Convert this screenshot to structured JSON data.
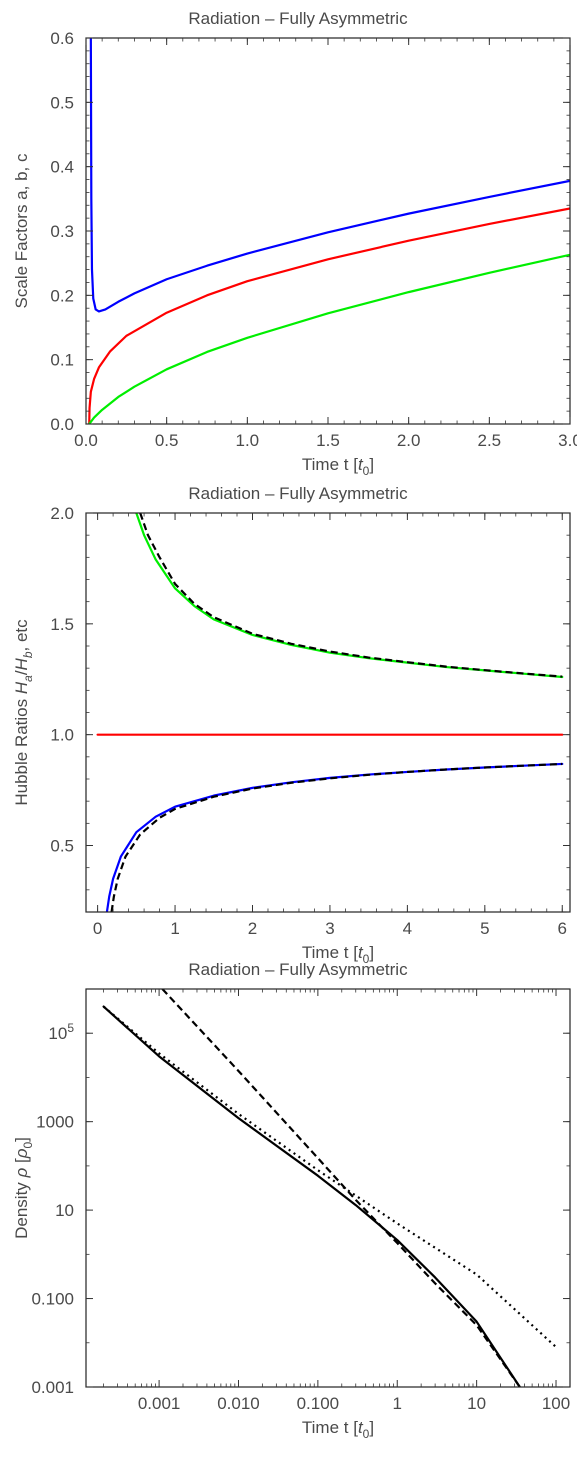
{
  "chart_data": [
    {
      "type": "line",
      "title": "Radiation  – Fully Asymmetric",
      "xlabel": "Time  t [t₀]",
      "ylabel": "Scale Factors   a, b, c",
      "xlim": [
        0,
        3
      ],
      "ylim": [
        0,
        0.6
      ],
      "x_ticks": [
        "0.0",
        "0.5",
        "1.0",
        "1.5",
        "2.0",
        "2.5",
        "3.0"
      ],
      "y_ticks": [
        "0.0",
        "0.1",
        "0.2",
        "0.3",
        "0.4",
        "0.5",
        "0.6"
      ],
      "series": [
        {
          "color": "#0000ff",
          "style": "solid",
          "points": [
            [
              0.03,
              0.6
            ],
            [
              0.033,
              0.35
            ],
            [
              0.037,
              0.24
            ],
            [
              0.045,
              0.195
            ],
            [
              0.06,
              0.178
            ],
            [
              0.08,
              0.175
            ],
            [
              0.12,
              0.178
            ],
            [
              0.2,
              0.19
            ],
            [
              0.3,
              0.203
            ],
            [
              0.5,
              0.225
            ],
            [
              0.75,
              0.246
            ],
            [
              1.0,
              0.265
            ],
            [
              1.5,
              0.298
            ],
            [
              2.0,
              0.327
            ],
            [
              2.5,
              0.353
            ],
            [
              3.0,
              0.378
            ]
          ]
        },
        {
          "color": "#ff0000",
          "style": "solid",
          "points": [
            [
              0.02,
              0.0
            ],
            [
              0.022,
              0.025
            ],
            [
              0.03,
              0.05
            ],
            [
              0.05,
              0.07
            ],
            [
              0.08,
              0.088
            ],
            [
              0.15,
              0.113
            ],
            [
              0.25,
              0.137
            ],
            [
              0.5,
              0.173
            ],
            [
              0.75,
              0.2
            ],
            [
              1.0,
              0.222
            ],
            [
              1.5,
              0.256
            ],
            [
              2.0,
              0.285
            ],
            [
              2.5,
              0.311
            ],
            [
              3.0,
              0.335
            ]
          ]
        },
        {
          "color": "#00ee00",
          "style": "solid",
          "points": [
            [
              0.02,
              0.0
            ],
            [
              0.05,
              0.01
            ],
            [
              0.1,
              0.022
            ],
            [
              0.2,
              0.042
            ],
            [
              0.3,
              0.058
            ],
            [
              0.5,
              0.085
            ],
            [
              0.75,
              0.112
            ],
            [
              1.0,
              0.134
            ],
            [
              1.5,
              0.172
            ],
            [
              2.0,
              0.205
            ],
            [
              2.5,
              0.235
            ],
            [
              3.0,
              0.263
            ]
          ]
        }
      ]
    },
    {
      "type": "line",
      "title": "Radiation – Fully Asymmetric",
      "xlabel": "Time  t [t₀]",
      "ylabel": "Hubble Ratios  Ha/Hb, etc",
      "xlim": [
        -0.15,
        6.1
      ],
      "ylim": [
        0.2,
        2.0
      ],
      "x_ticks": [
        "0",
        "1",
        "2",
        "3",
        "4",
        "5",
        "6"
      ],
      "y_ticks": [
        "0.5",
        "1.0",
        "1.5",
        "2.0"
      ],
      "series": [
        {
          "color": "#00ee00",
          "style": "solid",
          "points": [
            [
              0.5,
              2.0
            ],
            [
              0.6,
              1.9
            ],
            [
              0.75,
              1.79
            ],
            [
              1.0,
              1.66
            ],
            [
              1.25,
              1.58
            ],
            [
              1.5,
              1.52
            ],
            [
              2.0,
              1.45
            ],
            [
              2.5,
              1.405
            ],
            [
              3.0,
              1.37
            ],
            [
              3.5,
              1.345
            ],
            [
              4.0,
              1.325
            ],
            [
              4.5,
              1.305
            ],
            [
              5.0,
              1.29
            ],
            [
              5.5,
              1.275
            ],
            [
              6.0,
              1.26
            ]
          ]
        },
        {
          "color": "#000000",
          "style": "dashed",
          "points": [
            [
              0.55,
              2.0
            ],
            [
              0.65,
              1.9
            ],
            [
              0.8,
              1.8
            ],
            [
              1.0,
              1.68
            ],
            [
              1.25,
              1.59
            ],
            [
              1.5,
              1.53
            ],
            [
              2.0,
              1.455
            ],
            [
              2.5,
              1.41
            ],
            [
              3.0,
              1.375
            ],
            [
              3.5,
              1.348
            ],
            [
              4.0,
              1.327
            ],
            [
              4.5,
              1.307
            ],
            [
              5.0,
              1.291
            ],
            [
              5.5,
              1.276
            ],
            [
              6.0,
              1.262
            ]
          ]
        },
        {
          "color": "#ff0000",
          "style": "solid",
          "points": [
            [
              0.0,
              1.0
            ],
            [
              6.0,
              1.0
            ]
          ]
        },
        {
          "color": "#0000ff",
          "style": "solid",
          "points": [
            [
              0.12,
              0.2
            ],
            [
              0.15,
              0.27
            ],
            [
              0.2,
              0.35
            ],
            [
              0.3,
              0.45
            ],
            [
              0.5,
              0.56
            ],
            [
              0.75,
              0.63
            ],
            [
              1.0,
              0.675
            ],
            [
              1.5,
              0.725
            ],
            [
              2.0,
              0.76
            ],
            [
              2.5,
              0.785
            ],
            [
              3.0,
              0.805
            ],
            [
              3.5,
              0.82
            ],
            [
              4.0,
              0.832
            ],
            [
              4.5,
              0.843
            ],
            [
              5.0,
              0.852
            ],
            [
              5.5,
              0.86
            ],
            [
              6.0,
              0.868
            ]
          ]
        },
        {
          "color": "#000000",
          "style": "dashed",
          "points": [
            [
              0.18,
              0.2
            ],
            [
              0.21,
              0.27
            ],
            [
              0.26,
              0.35
            ],
            [
              0.36,
              0.45
            ],
            [
              0.55,
              0.55
            ],
            [
              0.8,
              0.625
            ],
            [
              1.0,
              0.665
            ],
            [
              1.5,
              0.72
            ],
            [
              2.0,
              0.757
            ],
            [
              2.5,
              0.783
            ],
            [
              3.0,
              0.803
            ],
            [
              3.5,
              0.819
            ],
            [
              4.0,
              0.832
            ],
            [
              4.5,
              0.843
            ],
            [
              5.0,
              0.852
            ],
            [
              5.5,
              0.86
            ],
            [
              6.0,
              0.868
            ]
          ]
        }
      ]
    },
    {
      "type": "line",
      "title": "Radiation  – Fully Asymmetric",
      "xlabel": "Time  t [t₀]",
      "ylabel": "Density  ρ [ρ₀]",
      "x_scale": "log",
      "y_scale": "log",
      "xlim": [
        0.00012,
        150
      ],
      "ylim": [
        0.001,
        1000000
      ],
      "x_tick_values": [
        0.001,
        0.01,
        0.1,
        1,
        10,
        100
      ],
      "x_ticks": [
        "0.001",
        "0.010",
        "0.100",
        "1",
        "10",
        "100"
      ],
      "y_tick_values": [
        0.001,
        0.1,
        10,
        1000,
        100000
      ],
      "y_ticks": [
        "0.001",
        "0.100",
        "10",
        "1000",
        "10⁵"
      ],
      "series": [
        {
          "color": "#000000",
          "style": "solid",
          "points": [
            [
              0.0002,
              400000
            ],
            [
              0.001,
              30000
            ],
            [
              0.01,
              1200
            ],
            [
              0.1,
              60
            ],
            [
              0.3,
              13
            ],
            [
              1,
              2.1
            ],
            [
              3,
              0.3
            ],
            [
              10,
              0.03
            ],
            [
              35,
              0.001
            ]
          ]
        },
        {
          "color": "#000000",
          "style": "dashed",
          "points": [
            [
              0.0011,
              1000000
            ],
            [
              0.01,
              14000
            ],
            [
              0.1,
              150
            ],
            [
              0.3,
              17
            ],
            [
              1,
              1.8
            ],
            [
              3,
              0.22
            ],
            [
              10,
              0.025
            ],
            [
              35,
              0.001
            ]
          ]
        },
        {
          "color": "#000000",
          "style": "dotted",
          "points": [
            [
              0.0002,
              400000
            ],
            [
              0.001,
              35000
            ],
            [
              0.01,
              1500
            ],
            [
              0.1,
              80
            ],
            [
              1,
              5
            ],
            [
              10,
              0.35
            ],
            [
              100,
              0.008
            ]
          ]
        }
      ]
    }
  ]
}
